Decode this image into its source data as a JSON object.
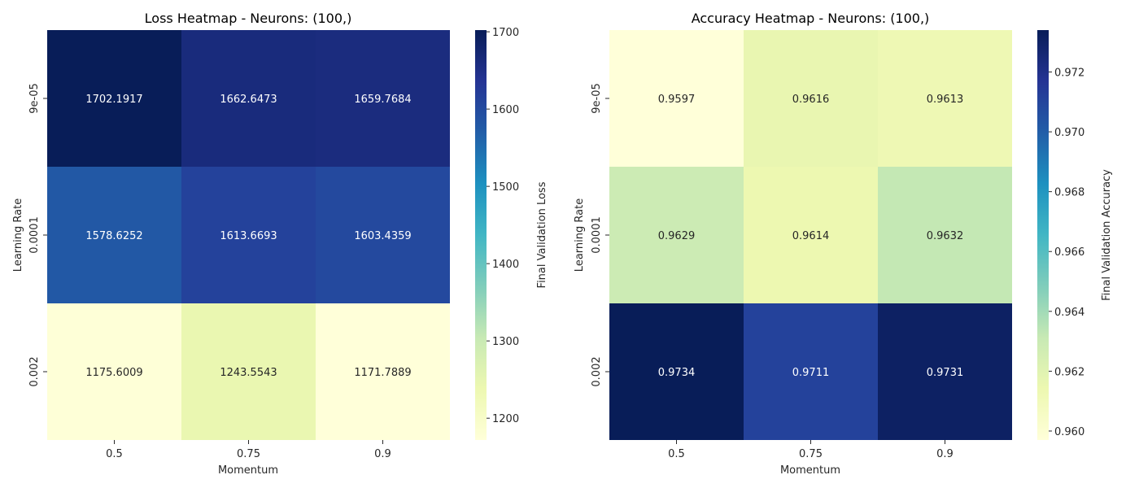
{
  "chart_data": [
    {
      "type": "heatmap",
      "title": "Loss Heatmap - Neurons: (100,)",
      "xlabel": "Momentum",
      "ylabel": "Learning Rate",
      "x_categories": [
        "0.5",
        "0.75",
        "0.9"
      ],
      "y_categories": [
        "9e-05",
        "0.0001",
        "0.002"
      ],
      "values": [
        [
          1702.1917,
          1662.6473,
          1659.7684
        ],
        [
          1578.6252,
          1613.6693,
          1603.4359
        ],
        [
          1175.6009,
          1243.5543,
          1171.7889
        ]
      ],
      "value_labels": [
        [
          "1702.1917",
          "1662.6473",
          "1659.7684"
        ],
        [
          "1578.6252",
          "1613.6693",
          "1603.4359"
        ],
        [
          "1175.6009",
          "1243.5543",
          "1171.7889"
        ]
      ],
      "colorbar": {
        "label": "Final Validation Loss",
        "ticks": [
          "1200",
          "1300",
          "1400",
          "1500",
          "1600",
          "1700"
        ],
        "tick_values": [
          1200,
          1300,
          1400,
          1500,
          1600,
          1700
        ],
        "vmin": 1171.7889,
        "vmax": 1702.1917,
        "colormap": "YlGnBu"
      }
    },
    {
      "type": "heatmap",
      "title": "Accuracy Heatmap - Neurons: (100,)",
      "xlabel": "Momentum",
      "ylabel": "Learning Rate",
      "x_categories": [
        "0.5",
        "0.75",
        "0.9"
      ],
      "y_categories": [
        "9e-05",
        "0.0001",
        "0.002"
      ],
      "values": [
        [
          0.9597,
          0.9616,
          0.9613
        ],
        [
          0.9629,
          0.9614,
          0.9632
        ],
        [
          0.9734,
          0.9711,
          0.9731
        ]
      ],
      "value_labels": [
        [
          "0.9597",
          "0.9616",
          "0.9613"
        ],
        [
          "0.9629",
          "0.9614",
          "0.9632"
        ],
        [
          "0.9734",
          "0.9711",
          "0.9731"
        ]
      ],
      "colorbar": {
        "label": "Final Validation Accuracy",
        "ticks": [
          "0.960",
          "0.962",
          "0.964",
          "0.966",
          "0.968",
          "0.970",
          "0.972"
        ],
        "tick_values": [
          0.96,
          0.962,
          0.964,
          0.966,
          0.968,
          0.97,
          0.972
        ],
        "vmin": 0.9597,
        "vmax": 0.9734,
        "colormap": "YlGnBu"
      }
    }
  ]
}
